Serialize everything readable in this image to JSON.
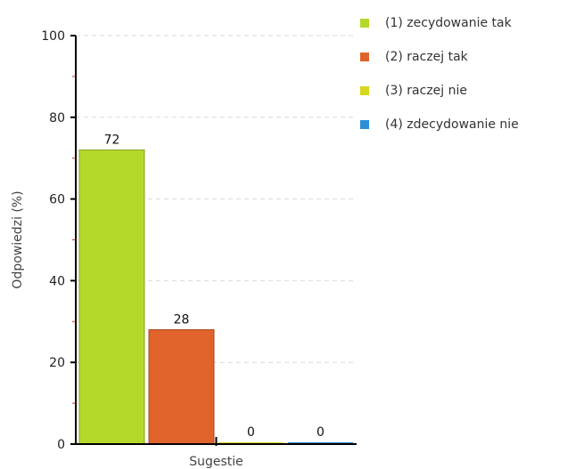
{
  "chart_data": {
    "type": "bar",
    "title": "",
    "xlabel": "Sugestie",
    "ylabel": "Odpowiedzi (%)",
    "ylim": [
      0,
      100
    ],
    "yticks": [
      0,
      20,
      40,
      60,
      80,
      100
    ],
    "grid": true,
    "legend_position": "right",
    "categories": [
      "Sugestie"
    ],
    "series": [
      {
        "name": "(1) zecydowanie tak",
        "values": [
          72
        ],
        "color": "#b5d92a"
      },
      {
        "name": "(2) raczej tak",
        "values": [
          28
        ],
        "color": "#e0632b"
      },
      {
        "name": "(3) raczej nie",
        "values": [
          0
        ],
        "color": "#d8d81a"
      },
      {
        "name": "(4) zdecydowanie nie",
        "values": [
          0
        ],
        "color": "#2d8fd8"
      }
    ]
  }
}
